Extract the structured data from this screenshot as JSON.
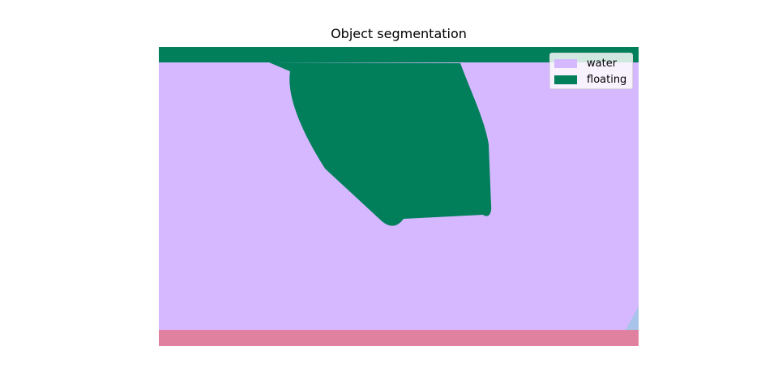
{
  "title": "Object segmentation",
  "legend": [
    {
      "label": "water",
      "color": "#d5b8ff"
    },
    {
      "label": "floating",
      "color": "#007f5a"
    }
  ],
  "colors": {
    "water": "#d5b8ff",
    "floating": "#007f5a",
    "bottom_band": "#e0829f",
    "corner_region": "#a8c4ea"
  }
}
